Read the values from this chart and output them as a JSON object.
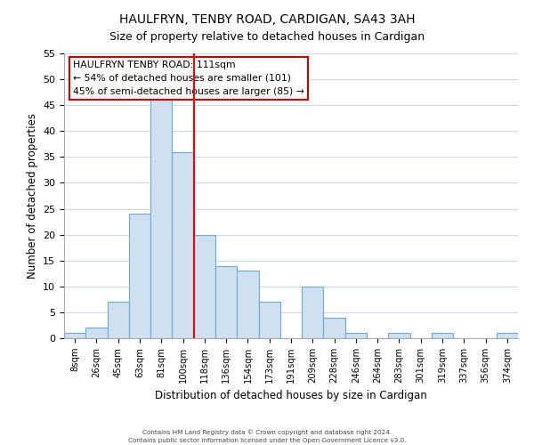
{
  "title": "HAULFRYN, TENBY ROAD, CARDIGAN, SA43 3AH",
  "subtitle": "Size of property relative to detached houses in Cardigan",
  "xlabel": "Distribution of detached houses by size in Cardigan",
  "ylabel": "Number of detached properties",
  "bar_labels": [
    "8sqm",
    "26sqm",
    "45sqm",
    "63sqm",
    "81sqm",
    "100sqm",
    "118sqm",
    "136sqm",
    "154sqm",
    "173sqm",
    "191sqm",
    "209sqm",
    "228sqm",
    "246sqm",
    "264sqm",
    "283sqm",
    "301sqm",
    "319sqm",
    "337sqm",
    "356sqm",
    "374sqm"
  ],
  "bar_values": [
    1,
    2,
    7,
    24,
    46,
    36,
    20,
    14,
    13,
    7,
    0,
    10,
    4,
    1,
    0,
    1,
    0,
    1,
    0,
    0,
    1
  ],
  "bar_color": "#cfe0f1",
  "bar_edge_color": "#6aaad4",
  "vline_x": 5.5,
  "vline_color": "red",
  "ylim": [
    0,
    55
  ],
  "yticks": [
    0,
    5,
    10,
    15,
    20,
    25,
    30,
    35,
    40,
    45,
    50,
    55
  ],
  "annotation_title": "HAULFRYN TENBY ROAD: 111sqm",
  "annotation_line1": "← 54% of detached houses are smaller (101)",
  "annotation_line2": "45% of semi-detached houses are larger (85) →",
  "footer1": "Contains HM Land Registry data © Crown copyright and database right 2024.",
  "footer2": "Contains public sector information licensed under the Open Government Licence v3.0.",
  "bg_color": "#ffffff",
  "grid_color": "#c8d8e8"
}
